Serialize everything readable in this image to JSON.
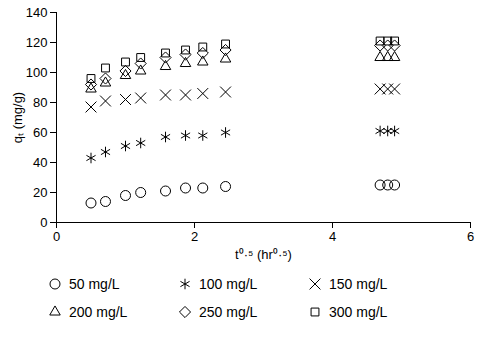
{
  "chart_data": {
    "type": "scatter",
    "x_label": "t⁰·⁵ (hr⁰·⁵)",
    "y_label": "qₜ (mg/g)",
    "x": [
      0.5,
      0.71,
      1.0,
      1.22,
      1.58,
      1.87,
      2.12,
      2.45,
      4.69,
      4.8,
      4.9
    ],
    "series": [
      {
        "name": "50 mg/L",
        "color": "#000000",
        "marker": "circle",
        "values": [
          13,
          14,
          18,
          20,
          21,
          23,
          23,
          24,
          25,
          25,
          25
        ]
      },
      {
        "name": "100 mg/L",
        "color": "#000000",
        "marker": "asterisk",
        "values": [
          43,
          47,
          51,
          53,
          57,
          58,
          58,
          60,
          61,
          61,
          61
        ]
      },
      {
        "name": "150 mg/L",
        "color": "#000000",
        "marker": "x",
        "values": [
          77,
          81,
          82,
          83,
          85,
          85,
          86,
          87,
          89,
          89,
          89
        ]
      },
      {
        "name": "200 mg/L",
        "color": "#000000",
        "marker": "triangle",
        "values": [
          89,
          93,
          98,
          101,
          104,
          106,
          107,
          109,
          110,
          110,
          110
        ]
      },
      {
        "name": "250 mg/L",
        "color": "#000000",
        "marker": "diamond",
        "values": [
          92,
          96,
          101,
          106,
          110,
          112,
          113,
          115,
          118,
          118,
          118
        ]
      },
      {
        "name": "300 mg/L",
        "color": "#000000",
        "marker": "square",
        "values": [
          96,
          103,
          107,
          110,
          113,
          115,
          117,
          119,
          121,
          121,
          121
        ]
      }
    ],
    "xlim": [
      0,
      6
    ],
    "xticks": [
      0,
      2,
      4,
      6
    ],
    "ylim": [
      0,
      140
    ],
    "yticks": [
      0,
      20,
      40,
      60,
      80,
      100,
      120,
      140
    ],
    "grid": false,
    "legend": "bottom"
  }
}
